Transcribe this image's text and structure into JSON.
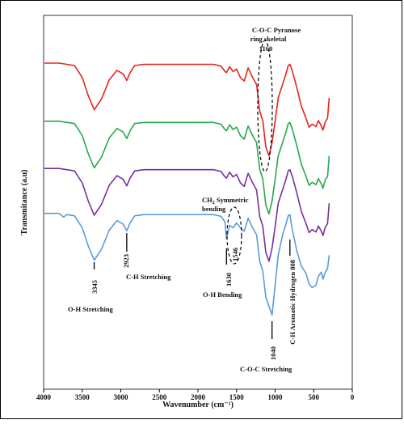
{
  "chart_data": {
    "type": "line",
    "title": "",
    "xlabel": "Wavenumber (cm⁻¹)",
    "ylabel": "Transmitance (a.u)",
    "xlim": [
      4000,
      0
    ],
    "x_reversed": true,
    "x_ticks": [
      "4000",
      "3500",
      "3000",
      "2500",
      "2000",
      "1500",
      "1000",
      "500",
      "0"
    ],
    "y_ticks": "none",
    "grid": false,
    "legend": "none",
    "series": [
      {
        "color": "#e8231b",
        "baseline": 0.0,
        "x": [
          3990,
          3800,
          3600,
          3500,
          3420,
          3345,
          3250,
          3150,
          3050,
          2970,
          2923,
          2880,
          2820,
          2700,
          1800,
          1700,
          1650,
          1630,
          1590,
          1546,
          1500,
          1450,
          1400,
          1350,
          1300,
          1240,
          1200,
          1160,
          1120,
          1080,
          1040,
          1000,
          960,
          900,
          860,
          830,
          808,
          780,
          720,
          660,
          600,
          560,
          520,
          470,
          440,
          400,
          380,
          350,
          320,
          300
        ],
        "y": [
          0,
          0,
          0.04,
          0.24,
          0.55,
          0.78,
          0.6,
          0.28,
          0.12,
          0.18,
          0.29,
          0.16,
          0.04,
          0.02,
          0.02,
          0.05,
          0.14,
          0.16,
          0.06,
          0.14,
          0.1,
          0.24,
          0.3,
          0.08,
          0.22,
          0.36,
          0.8,
          0.96,
          1.4,
          1.55,
          1.33,
          0.97,
          0.58,
          0.34,
          0.18,
          0.04,
          0.02,
          0.12,
          0.4,
          0.72,
          0.92,
          1.07,
          1.02,
          1.06,
          0.96,
          1.05,
          1.12,
          0.98,
          0.92,
          0.58
        ]
      },
      {
        "color": "#27a84a",
        "baseline": 0.97,
        "x": [
          3990,
          3800,
          3600,
          3500,
          3420,
          3345,
          3250,
          3150,
          3050,
          2970,
          2923,
          2880,
          2820,
          2700,
          1800,
          1700,
          1650,
          1630,
          1590,
          1546,
          1500,
          1450,
          1400,
          1350,
          1300,
          1240,
          1200,
          1160,
          1120,
          1080,
          1040,
          1000,
          960,
          900,
          860,
          830,
          808,
          780,
          720,
          660,
          600,
          560,
          520,
          470,
          440,
          400,
          380,
          350,
          320,
          300
        ],
        "y": [
          0,
          0,
          0.04,
          0.24,
          0.55,
          0.78,
          0.6,
          0.28,
          0.12,
          0.18,
          0.29,
          0.16,
          0.04,
          0.02,
          0.02,
          0.05,
          0.14,
          0.16,
          0.06,
          0.14,
          0.1,
          0.24,
          0.3,
          0.08,
          0.22,
          0.36,
          0.8,
          0.96,
          1.4,
          1.55,
          1.33,
          0.97,
          0.58,
          0.34,
          0.18,
          0.04,
          0.02,
          0.12,
          0.4,
          0.72,
          0.92,
          1.07,
          1.02,
          1.06,
          0.96,
          1.05,
          1.12,
          0.98,
          0.92,
          0.58
        ]
      },
      {
        "color": "#7a2f9a",
        "baseline": 1.76,
        "x": [
          3990,
          3800,
          3600,
          3500,
          3420,
          3345,
          3250,
          3150,
          3050,
          2970,
          2923,
          2880,
          2820,
          2700,
          1800,
          1700,
          1650,
          1630,
          1590,
          1546,
          1500,
          1450,
          1400,
          1350,
          1300,
          1240,
          1200,
          1160,
          1120,
          1080,
          1040,
          1000,
          960,
          900,
          860,
          830,
          808,
          780,
          720,
          660,
          600,
          560,
          520,
          470,
          440,
          400,
          380,
          350,
          320,
          300
        ],
        "y": [
          0,
          0,
          0.04,
          0.24,
          0.55,
          0.78,
          0.6,
          0.28,
          0.12,
          0.18,
          0.29,
          0.16,
          0.04,
          0.02,
          0.02,
          0.05,
          0.14,
          0.16,
          0.06,
          0.14,
          0.1,
          0.24,
          0.3,
          0.08,
          0.22,
          0.36,
          0.8,
          0.96,
          1.4,
          1.55,
          1.33,
          0.97,
          0.58,
          0.34,
          0.18,
          0.04,
          0.02,
          0.12,
          0.4,
          0.72,
          0.92,
          1.07,
          1.02,
          1.06,
          0.96,
          1.05,
          1.12,
          0.98,
          0.92,
          0.58
        ]
      },
      {
        "color": "#5b9bd5",
        "baseline": 2.51,
        "x": [
          3990,
          3800,
          3740,
          3700,
          3600,
          3500,
          3420,
          3345,
          3250,
          3150,
          3050,
          2970,
          2923,
          2880,
          2820,
          2700,
          1800,
          1700,
          1650,
          1630,
          1590,
          1546,
          1500,
          1450,
          1400,
          1350,
          1300,
          1240,
          1200,
          1160,
          1120,
          1080,
          1040,
          1000,
          960,
          900,
          860,
          830,
          808,
          780,
          720,
          660,
          600,
          560,
          520,
          470,
          440,
          400,
          380,
          350,
          320,
          300
        ],
        "y": [
          0,
          0,
          0.06,
          0.02,
          0.04,
          0.24,
          0.55,
          0.78,
          0.6,
          0.28,
          0.12,
          0.18,
          0.29,
          0.16,
          0.04,
          0.02,
          0.02,
          0.05,
          0.14,
          0.42,
          0.2,
          0.24,
          0.16,
          0.24,
          0.3,
          0.08,
          0.22,
          0.36,
          0.8,
          0.96,
          1.4,
          1.55,
          1.7,
          1.2,
          0.7,
          0.34,
          0.18,
          0.04,
          0.02,
          0.25,
          0.62,
          0.88,
          1.0,
          1.18,
          1.24,
          1.2,
          1.05,
          0.98,
          1.1,
          0.98,
          0.92,
          0.7
        ]
      }
    ],
    "annotations": [
      {
        "text": "3345",
        "x": 3345,
        "rotated": true
      },
      {
        "text": "2923",
        "x": 2923,
        "rotated": true
      },
      {
        "text": "1630",
        "x": 1630,
        "rotated": true
      },
      {
        "text": "1546",
        "x": 1546,
        "rotated": true
      },
      {
        "text": "1040",
        "x": 1040,
        "rotated": true
      },
      {
        "text": "1160",
        "x": 1160,
        "rotated": false
      },
      {
        "text": "C-H Aromatic Hydrogen 808",
        "x": 808,
        "rotated": true
      }
    ],
    "labels": {
      "pyranose": [
        "C-O-C Pyranose",
        "ring skeletal"
      ],
      "ch2_prefix": "CH",
      "ch2_sub": "2",
      "ch2_suffix": " Symmetric",
      "ch2_bending": "bending",
      "ch_stretch": "C-H Stretching",
      "oh_stretch": "O-H Stretching",
      "oh_bend": "O-H Bending",
      "coc_stretch": "C-O-C Stretching"
    }
  }
}
